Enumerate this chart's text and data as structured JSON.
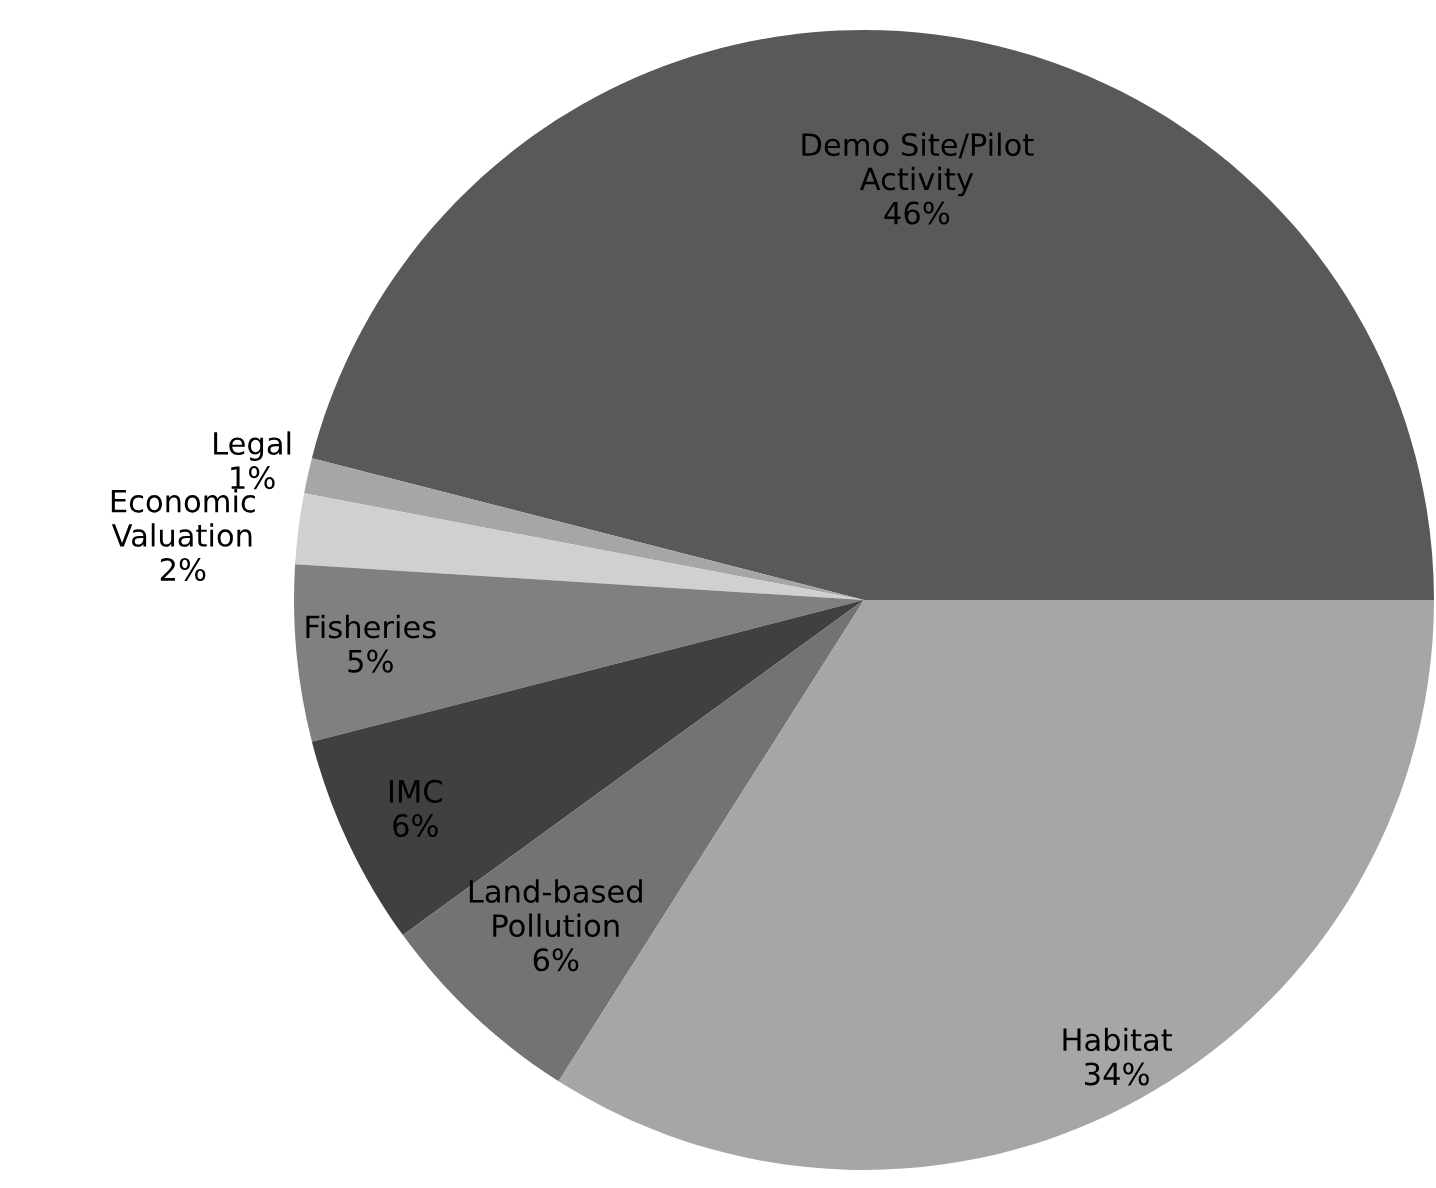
{
  "chart_data": {
    "type": "pie",
    "categories": [
      "Demo Site/Pilot\nActivity",
      "Legal",
      "Economic\nValuation",
      "Fisheries",
      "IMC",
      "Land-based\nPollution",
      "Habitat"
    ],
    "values": [
      46,
      1,
      2,
      5,
      6,
      6,
      34
    ],
    "colors": [
      "#595959",
      "#a6a6a6",
      "#d0d0d0",
      "#808080",
      "#404040",
      "#737373",
      "#a6a6a6"
    ],
    "value_labels": [
      "46%",
      "1%",
      "2%",
      "5%",
      "6%",
      "6%",
      "34%"
    ]
  }
}
